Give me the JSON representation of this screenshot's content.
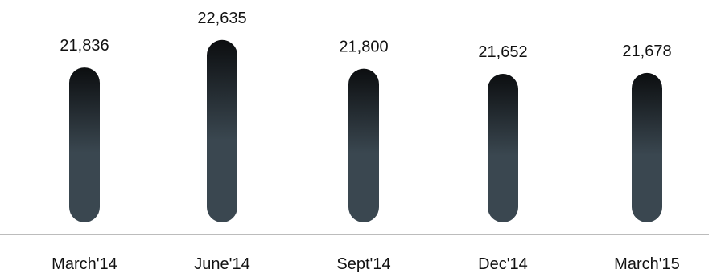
{
  "chart_data": {
    "type": "bar",
    "title": "",
    "xlabel": "",
    "ylabel": "",
    "categories": [
      "March'14",
      "June'14",
      "Sept'14",
      "Dec'14",
      "March'15"
    ],
    "values": [
      21836,
      22635,
      21800,
      21652,
      21678
    ],
    "value_labels": [
      "21,836",
      "22,635",
      "21,800",
      "21,652",
      "21,678"
    ],
    "grid": false,
    "legend": "none",
    "colors": {
      "bar_top": "#0c0e10",
      "bar_bottom": "#3a4750",
      "axis": "#a6a6a6",
      "text": "#111111"
    }
  }
}
